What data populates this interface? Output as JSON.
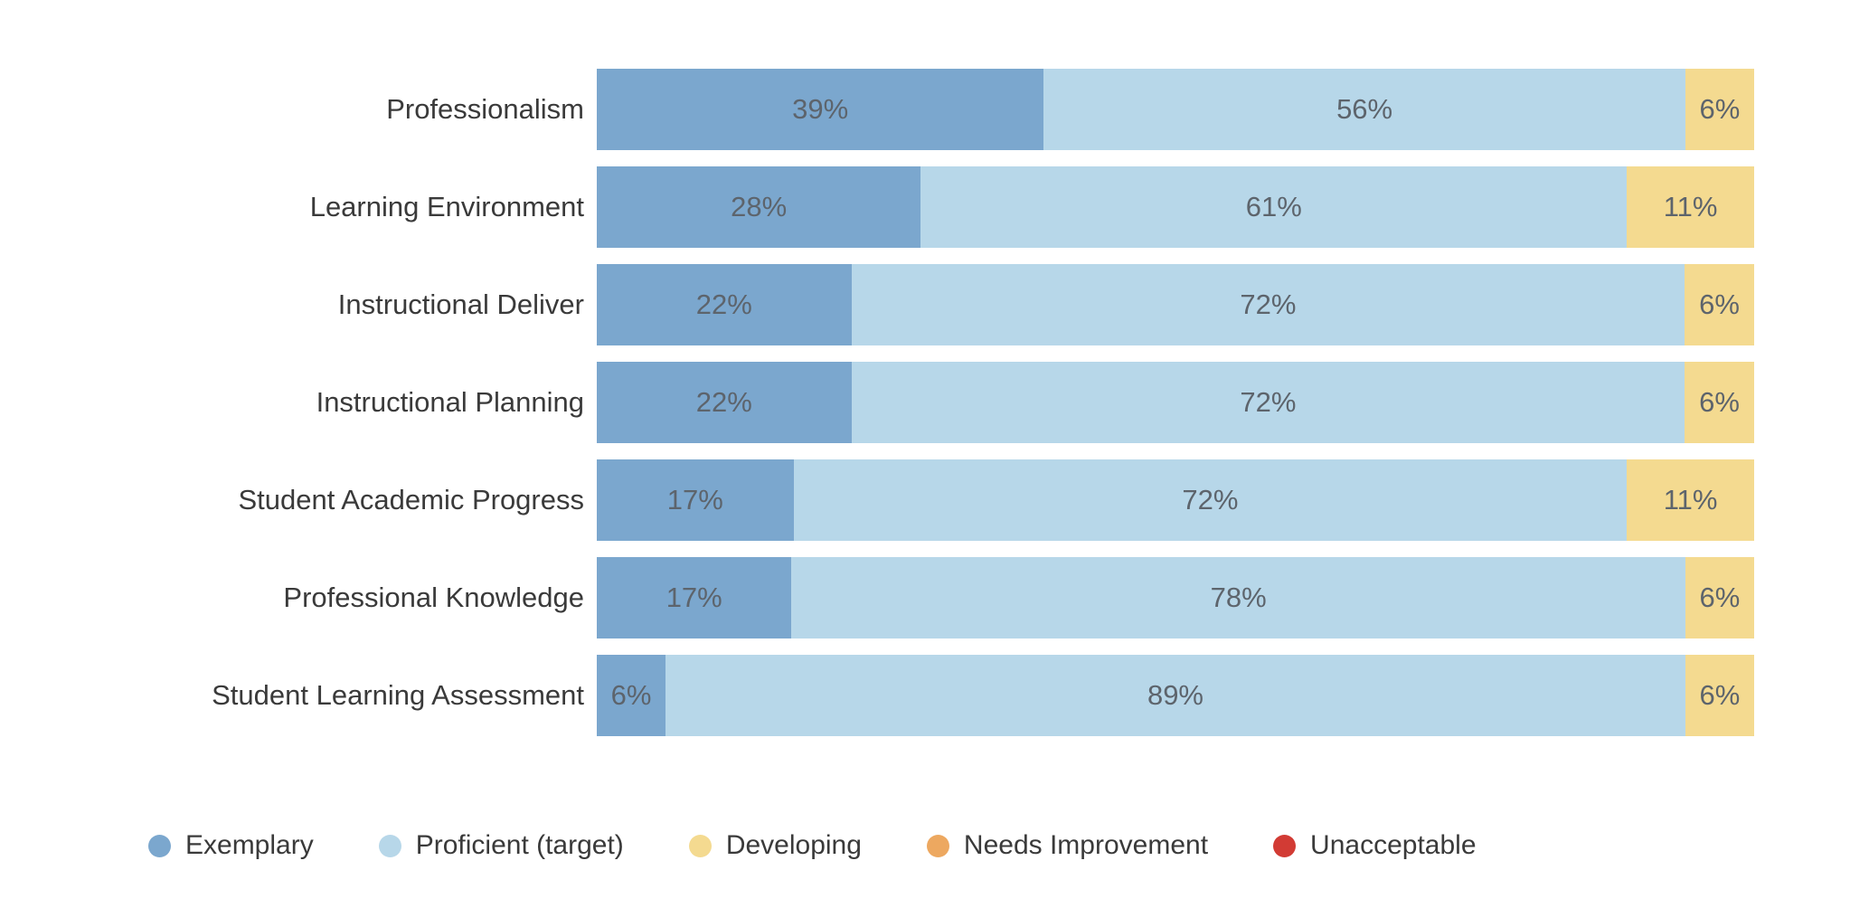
{
  "chart_data": {
    "type": "bar",
    "orientation": "horizontal",
    "stacked": true,
    "normalized_to_100": true,
    "title": "",
    "xlabel": "",
    "ylabel": "",
    "grid": false,
    "legend_position": "bottom",
    "value_suffix": "%",
    "categories": [
      "Professionalism",
      "Learning Environment",
      "Instructional Deliver",
      "Instructional Planning",
      "Student Academic Progress",
      "Professional Knowledge",
      "Student Learning Assessment"
    ],
    "series": [
      {
        "name": "Exemplary",
        "color": "#7BA7CE",
        "values": [
          39,
          28,
          22,
          22,
          17,
          17,
          6
        ]
      },
      {
        "name": "Proficient (target)",
        "color": "#B7D7E9",
        "values": [
          56,
          61,
          72,
          72,
          72,
          78,
          89
        ]
      },
      {
        "name": "Developing",
        "color": "#F4DA90",
        "values": [
          6,
          11,
          6,
          6,
          11,
          6,
          6
        ]
      },
      {
        "name": "Needs Improvement",
        "color": "#EDA860",
        "values": [
          0,
          0,
          0,
          0,
          0,
          0,
          0
        ]
      },
      {
        "name": "Unacceptable",
        "color": "#D23B34",
        "values": [
          0,
          0,
          0,
          0,
          0,
          0,
          0
        ]
      }
    ],
    "colors": {
      "bar_label_text": "#5d646c",
      "category_label_text": "#3a3a3a",
      "legend_text": "#3a3a3a",
      "background": "#ffffff"
    }
  }
}
